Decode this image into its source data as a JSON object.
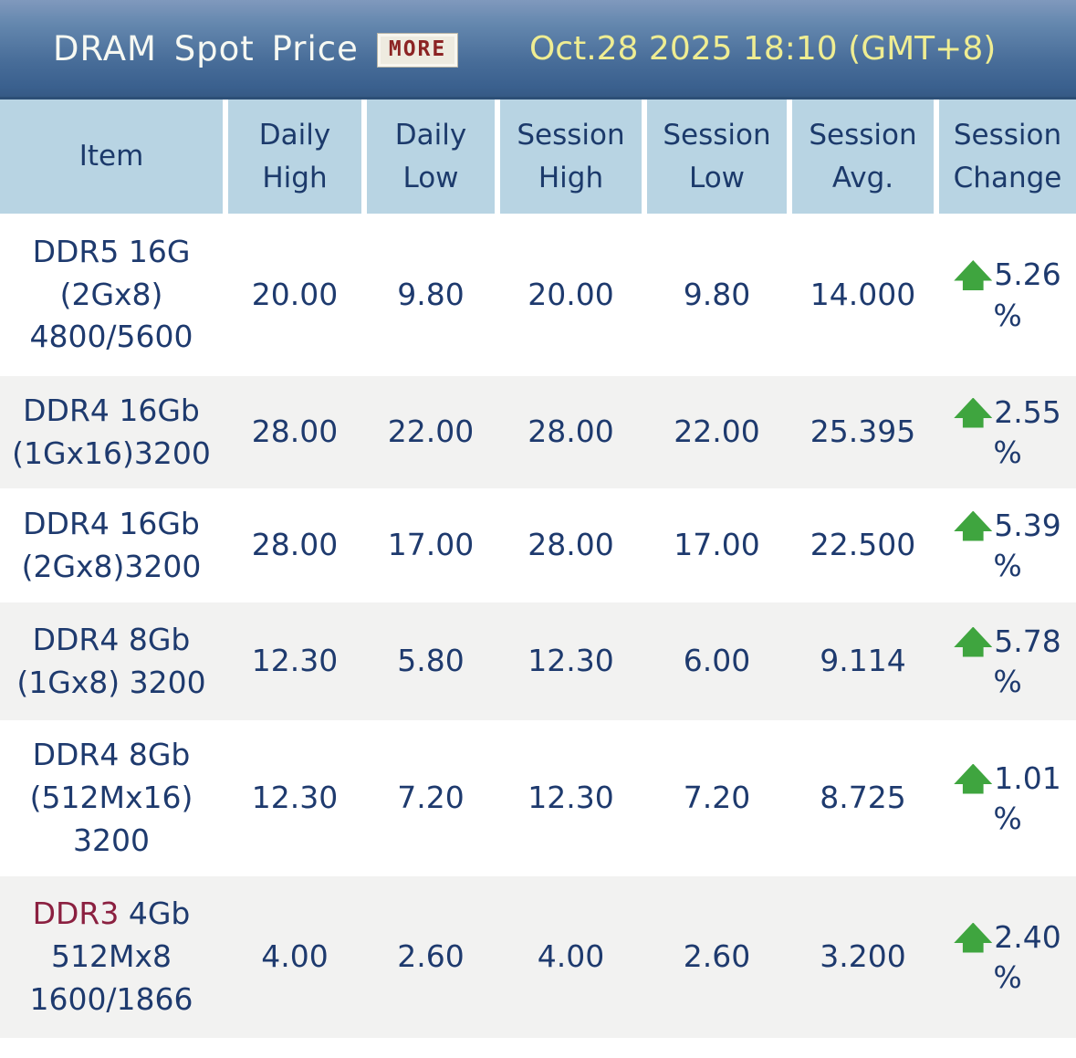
{
  "header": {
    "title": "DRAM Spot Price",
    "more_label": "MORE",
    "datetime": "Oct.28 2025 18:10 (GMT+8)"
  },
  "table": {
    "columns": [
      "Item",
      "Daily High",
      "Daily Low",
      "Session High",
      "Session Low",
      "Session Avg.",
      "Session Change"
    ],
    "rows": [
      {
        "item_lines": [
          "DDR5 16G",
          "(2Gx8)",
          "4800/5600"
        ],
        "daily_high": "20.00",
        "daily_low": "9.80",
        "session_high": "20.00",
        "session_low": "9.80",
        "session_avg": "14.000",
        "change_value": "5.26",
        "change_unit": "%",
        "change_direction": "up"
      },
      {
        "item_lines": [
          "DDR4 16Gb",
          "(1Gx16)3200"
        ],
        "daily_high": "28.00",
        "daily_low": "22.00",
        "session_high": "28.00",
        "session_low": "22.00",
        "session_avg": "25.395",
        "change_value": "2.55",
        "change_unit": "%",
        "change_direction": "up"
      },
      {
        "item_lines": [
          "DDR4 16Gb",
          "(2Gx8)3200"
        ],
        "daily_high": "28.00",
        "daily_low": "17.00",
        "session_high": "28.00",
        "session_low": "17.00",
        "session_avg": "22.500",
        "change_value": "5.39",
        "change_unit": "%",
        "change_direction": "up"
      },
      {
        "item_lines": [
          "DDR4 8Gb",
          "(1Gx8) 3200"
        ],
        "daily_high": "12.30",
        "daily_low": "5.80",
        "session_high": "12.30",
        "session_low": "6.00",
        "session_avg": "9.114",
        "change_value": "5.78",
        "change_unit": "%",
        "change_direction": "up"
      },
      {
        "item_lines": [
          "DDR4 8Gb",
          "(512Mx16)",
          "3200"
        ],
        "daily_high": "12.30",
        "daily_low": "7.20",
        "session_high": "12.30",
        "session_low": "7.20",
        "session_avg": "8.725",
        "change_value": "1.01",
        "change_unit": "%",
        "change_direction": "up"
      },
      {
        "item_highlight": "DDR3",
        "item_line1_rest": " 4Gb",
        "item_lines": [
          "512Mx8",
          "1600/1866"
        ],
        "daily_high": "4.00",
        "daily_low": "2.60",
        "session_high": "4.00",
        "session_low": "2.60",
        "session_avg": "3.200",
        "change_value": "2.40",
        "change_unit": "%",
        "change_direction": "up"
      }
    ]
  },
  "colors": {
    "up_green": "#3fa53f",
    "ddr3_red": "#8b2040",
    "header_cell_blue": "#b8d4e3",
    "navy_text": "#1e3a6e",
    "date_yellow": "#efed92",
    "titlebar_blue": "#3a608e"
  }
}
